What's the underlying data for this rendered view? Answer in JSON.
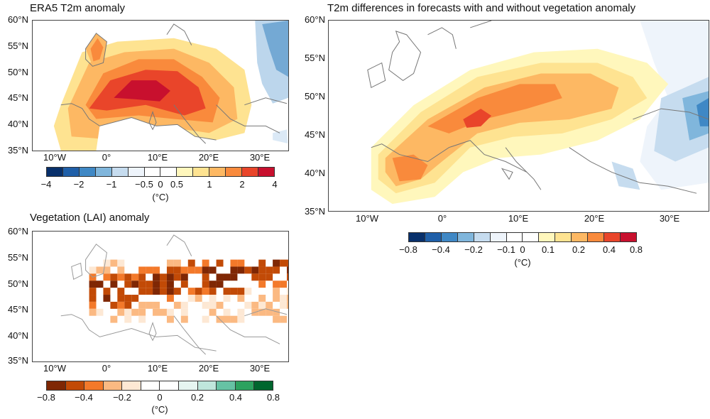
{
  "panels": {
    "era5": {
      "title": "ERA5  T2m anomaly",
      "lat_labels": [
        "60°N",
        "55°N",
        "50°N",
        "45°N",
        "40°N",
        "35°N"
      ],
      "lon_labels": [
        "10°W",
        "0°",
        "10°E",
        "20°E",
        "30°E"
      ],
      "colorbar_ticks": [
        "−4",
        "−2",
        "−1",
        "−0.5",
        "0",
        "0.5",
        "1",
        "2",
        "4"
      ],
      "colorbar_unit": "(°C)",
      "colors": [
        "#08306b",
        "#1f5fa8",
        "#3f88c5",
        "#80b6dc",
        "#c6dcef",
        "#eef4fb",
        "#ffffff",
        "#ffffff",
        "#fff7bc",
        "#fee391",
        "#fdb863",
        "#f98a3c",
        "#e9452a",
        "#c8102e"
      ]
    },
    "diff": {
      "title": "T2m differences in forecasts with and without vegetation anomaly",
      "lat_labels": [
        "60°N",
        "55°N",
        "50°N",
        "45°N",
        "40°N",
        "35°N"
      ],
      "lon_labels": [
        "10°W",
        "0°",
        "10°E",
        "20°E",
        "30°E"
      ],
      "colorbar_ticks": [
        "−0.8",
        "−0.4",
        "−0.2",
        "−0.1",
        "0",
        "0.1",
        "0.2",
        "0.4",
        "0.8"
      ],
      "colorbar_unit": "(°C)",
      "colors": [
        "#08306b",
        "#1f5fa8",
        "#3f88c5",
        "#80b6dc",
        "#c6dcef",
        "#eef4fb",
        "#ffffff",
        "#ffffff",
        "#fff7bc",
        "#fee391",
        "#fdb863",
        "#f98a3c",
        "#e9452a",
        "#c8102e"
      ]
    },
    "lai": {
      "title": "Vegetation (LAI) anomaly",
      "lat_labels": [
        "60°N",
        "55°N",
        "50°N",
        "45°N",
        "40°N",
        "35°N"
      ],
      "lon_labels": [
        "10°W",
        "0°",
        "10°E",
        "20°E",
        "30°E"
      ],
      "colorbar_ticks": [
        "−0.8",
        "−0.4",
        "−0.2",
        "0",
        "0.2",
        "0.4",
        "0.8"
      ],
      "colorbar_unit": "(°C)",
      "colors": [
        "#7f2704",
        "#c24a06",
        "#f3792a",
        "#fbb982",
        "#fde8d4",
        "#ffffff",
        "#ffffff",
        "#e6f5f1",
        "#bfe6dc",
        "#66c2a4",
        "#2ca25f",
        "#00662e"
      ]
    }
  }
}
